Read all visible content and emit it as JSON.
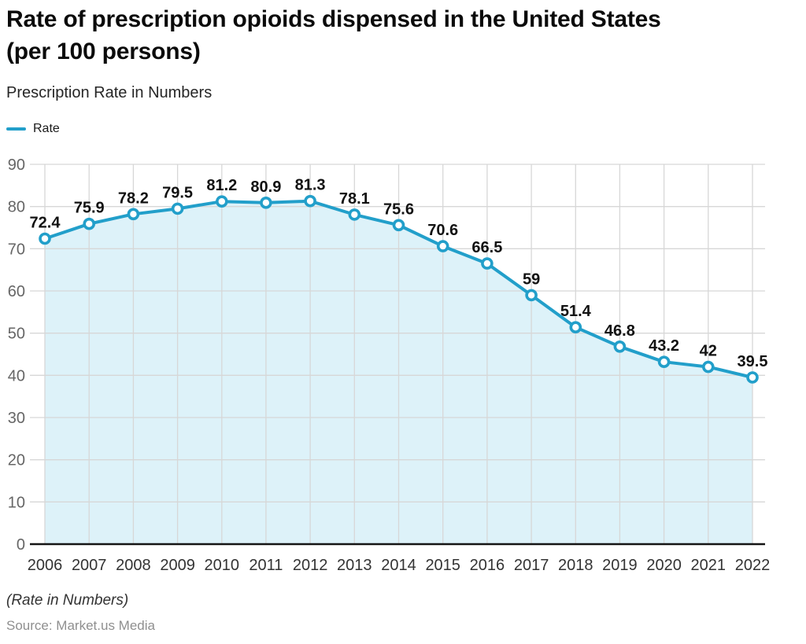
{
  "header": {
    "title_line1": "Rate of prescription opioids dispensed in the United States",
    "title_line2": "(per 100 persons)",
    "subtitle": "Prescription Rate in Numbers"
  },
  "chart_data": {
    "type": "area",
    "title": "Rate of prescription opioids dispensed in the United States (per 100 persons)",
    "subtitle": "Prescription Rate in Numbers",
    "legend": [
      "Rate"
    ],
    "legend_position": "top-left",
    "categories": [
      "2006",
      "2007",
      "2008",
      "2009",
      "2010",
      "2011",
      "2012",
      "2013",
      "2014",
      "2015",
      "2016",
      "2017",
      "2018",
      "2019",
      "2020",
      "2021",
      "2022"
    ],
    "series": [
      {
        "name": "Rate",
        "values": [
          72.4,
          75.9,
          78.2,
          79.5,
          81.2,
          80.9,
          81.3,
          78.1,
          75.6,
          70.6,
          66.5,
          59,
          51.4,
          46.8,
          43.2,
          42,
          39.5
        ]
      }
    ],
    "xlabel": "",
    "ylabel": "",
    "ylim": [
      0,
      90
    ],
    "y_ticks": [
      0,
      10,
      20,
      30,
      40,
      50,
      60,
      70,
      80,
      90
    ],
    "grid": true,
    "colors": {
      "line": "#229fca",
      "marker_fill": "#ffffff",
      "area_fill": "#ddf2f9",
      "grid": "#d7d7d7",
      "axis": "#141414",
      "y_label": "#666666",
      "x_label": "#333333",
      "data_label": "#111111"
    }
  },
  "footer": {
    "note": "(Rate in Numbers)",
    "source": "Source: Market.us Media"
  }
}
